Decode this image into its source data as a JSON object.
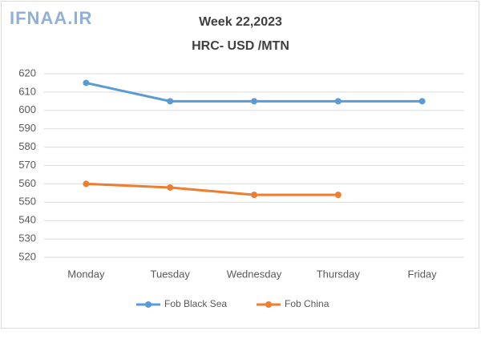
{
  "chart_data": {
    "type": "line",
    "watermark": "IFNAA.IR",
    "title": "Week 22,2023",
    "subtitle": "HRC- USD /MTN",
    "categories": [
      "Monday",
      "Tuesday",
      "Wednesday",
      "Thursday",
      "Friday"
    ],
    "series": [
      {
        "name": "Fob Black Sea",
        "color": "#5b9bd5",
        "values": [
          615,
          605,
          605,
          605,
          605
        ]
      },
      {
        "name": "Fob China",
        "color": "#ed7d31",
        "values": [
          560,
          558,
          554,
          554,
          null
        ]
      }
    ],
    "ylim": [
      520,
      620
    ],
    "yticks": [
      520,
      530,
      540,
      550,
      560,
      570,
      580,
      590,
      600,
      610,
      620
    ],
    "grid": true,
    "legend": "bottom"
  }
}
